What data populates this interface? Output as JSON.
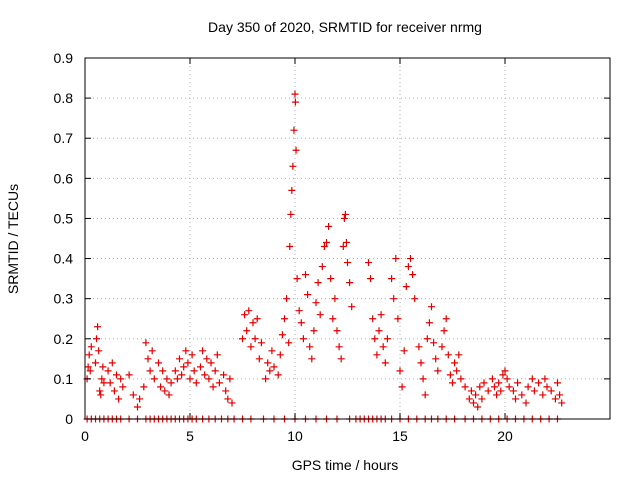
{
  "chart_data": {
    "type": "scatter",
    "title": "Day 350 of 2020, SRMTID for receiver nrmg",
    "xlabel": "GPS time / hours",
    "ylabel": "SRMTID / TECUs",
    "xlim": [
      0,
      25
    ],
    "ylim": [
      0,
      0.9
    ],
    "xticks": [
      0,
      5,
      10,
      15,
      20
    ],
    "xtick_labels": [
      "0",
      "5",
      "10",
      "15",
      "20"
    ],
    "yticks": [
      0,
      0.1,
      0.2,
      0.3,
      0.4,
      0.5,
      0.6,
      0.7,
      0.8,
      0.9
    ],
    "ytick_labels": [
      "0",
      "0.1",
      "0.2",
      "0.3",
      "0.4",
      "0.5",
      "0.6",
      "0.7",
      "0.8",
      "0.9"
    ],
    "grid": true,
    "marker": "+",
    "color": "#e00000",
    "series": [
      {
        "name": "SRMTID",
        "points": [
          [
            0.1,
            0.1
          ],
          [
            0.15,
            0.13
          ],
          [
            0.2,
            0.16
          ],
          [
            0.25,
            0.12
          ],
          [
            0.3,
            0.18
          ],
          [
            0.5,
            0.14
          ],
          [
            0.55,
            0.2
          ],
          [
            0.6,
            0.23
          ],
          [
            0.65,
            0.17
          ],
          [
            0.7,
            0.07
          ],
          [
            0.75,
            0.06
          ],
          [
            0.8,
            0.1
          ],
          [
            0.85,
            0.13
          ],
          [
            0.9,
            0.09
          ],
          [
            1.1,
            0.12
          ],
          [
            1.2,
            0.09
          ],
          [
            1.3,
            0.14
          ],
          [
            1.4,
            0.07
          ],
          [
            1.5,
            0.11
          ],
          [
            1.6,
            0.05
          ],
          [
            1.7,
            0.1
          ],
          [
            1.8,
            0.08
          ],
          [
            2.1,
            0.11
          ],
          [
            2.3,
            0.06
          ],
          [
            2.5,
            0.03
          ],
          [
            2.6,
            0.05
          ],
          [
            2.8,
            0.08
          ],
          [
            2.9,
            0.19
          ],
          [
            3.0,
            0.15
          ],
          [
            3.1,
            0.12
          ],
          [
            3.2,
            0.17
          ],
          [
            3.3,
            0.1
          ],
          [
            3.5,
            0.14
          ],
          [
            3.6,
            0.08
          ],
          [
            3.7,
            0.12
          ],
          [
            3.8,
            0.07
          ],
          [
            3.9,
            0.1
          ],
          [
            4.0,
            0.06
          ],
          [
            4.1,
            0.09
          ],
          [
            4.3,
            0.12
          ],
          [
            4.4,
            0.1
          ],
          [
            4.5,
            0.15
          ],
          [
            4.6,
            0.11
          ],
          [
            4.7,
            0.13
          ],
          [
            4.8,
            0.17
          ],
          [
            4.9,
            0.14
          ],
          [
            5.0,
            0.1
          ],
          [
            5.1,
            0.16
          ],
          [
            5.2,
            0.12
          ],
          [
            5.3,
            0.09
          ],
          [
            5.5,
            0.13
          ],
          [
            5.6,
            0.17
          ],
          [
            5.7,
            0.11
          ],
          [
            5.8,
            0.15
          ],
          [
            5.9,
            0.1
          ],
          [
            6.0,
            0.14
          ],
          [
            6.1,
            0.08
          ],
          [
            6.2,
            0.12
          ],
          [
            6.3,
            0.16
          ],
          [
            6.4,
            0.09
          ],
          [
            6.6,
            0.11
          ],
          [
            6.7,
            0.07
          ],
          [
            6.8,
            0.05
          ],
          [
            6.9,
            0.1
          ],
          [
            7.0,
            0.04
          ],
          [
            7.5,
            0.2
          ],
          [
            7.6,
            0.26
          ],
          [
            7.7,
            0.22
          ],
          [
            7.8,
            0.27
          ],
          [
            7.9,
            0.18
          ],
          [
            8.0,
            0.24
          ],
          [
            8.1,
            0.2
          ],
          [
            8.2,
            0.25
          ],
          [
            8.3,
            0.15
          ],
          [
            8.4,
            0.19
          ],
          [
            8.6,
            0.1
          ],
          [
            8.7,
            0.14
          ],
          [
            8.8,
            0.12
          ],
          [
            8.9,
            0.17
          ],
          [
            9.0,
            0.13
          ],
          [
            9.2,
            0.11
          ],
          [
            9.3,
            0.16
          ],
          [
            9.4,
            0.21
          ],
          [
            9.5,
            0.25
          ],
          [
            9.6,
            0.3
          ],
          [
            9.7,
            0.19
          ],
          [
            9.75,
            0.43
          ],
          [
            9.8,
            0.51
          ],
          [
            9.85,
            0.57
          ],
          [
            9.9,
            0.63
          ],
          [
            9.95,
            0.72
          ],
          [
            10.0,
            0.81
          ],
          [
            10.02,
            0.79
          ],
          [
            10.05,
            0.67
          ],
          [
            10.1,
            0.35
          ],
          [
            10.2,
            0.27
          ],
          [
            10.3,
            0.24
          ],
          [
            10.4,
            0.2
          ],
          [
            10.5,
            0.36
          ],
          [
            10.6,
            0.31
          ],
          [
            10.7,
            0.18
          ],
          [
            10.8,
            0.15
          ],
          [
            10.9,
            0.22
          ],
          [
            11.0,
            0.29
          ],
          [
            11.1,
            0.34
          ],
          [
            11.2,
            0.26
          ],
          [
            11.3,
            0.38
          ],
          [
            11.4,
            0.43
          ],
          [
            11.5,
            0.44
          ],
          [
            11.6,
            0.48
          ],
          [
            11.7,
            0.35
          ],
          [
            11.8,
            0.25
          ],
          [
            11.9,
            0.3
          ],
          [
            12.0,
            0.22
          ],
          [
            12.1,
            0.18
          ],
          [
            12.2,
            0.15
          ],
          [
            12.3,
            0.43
          ],
          [
            12.35,
            0.5
          ],
          [
            12.4,
            0.51
          ],
          [
            12.45,
            0.44
          ],
          [
            12.5,
            0.39
          ],
          [
            12.6,
            0.34
          ],
          [
            12.7,
            0.28
          ],
          [
            13.5,
            0.39
          ],
          [
            13.6,
            0.35
          ],
          [
            13.7,
            0.25
          ],
          [
            13.8,
            0.2
          ],
          [
            13.9,
            0.16
          ],
          [
            14.0,
            0.22
          ],
          [
            14.1,
            0.26
          ],
          [
            14.2,
            0.18
          ],
          [
            14.3,
            0.14
          ],
          [
            14.4,
            0.2
          ],
          [
            14.6,
            0.35
          ],
          [
            14.7,
            0.3
          ],
          [
            14.8,
            0.4
          ],
          [
            14.9,
            0.25
          ],
          [
            15.0,
            0.12
          ],
          [
            15.1,
            0.08
          ],
          [
            15.2,
            0.17
          ],
          [
            15.3,
            0.33
          ],
          [
            15.4,
            0.38
          ],
          [
            15.5,
            0.4
          ],
          [
            15.6,
            0.36
          ],
          [
            15.7,
            0.3
          ],
          [
            15.9,
            0.18
          ],
          [
            16.0,
            0.14
          ],
          [
            16.1,
            0.1
          ],
          [
            16.2,
            0.06
          ],
          [
            16.3,
            0.2
          ],
          [
            16.4,
            0.24
          ],
          [
            16.5,
            0.28
          ],
          [
            16.6,
            0.19
          ],
          [
            16.7,
            0.15
          ],
          [
            16.8,
            0.12
          ],
          [
            17.0,
            0.18
          ],
          [
            17.1,
            0.22
          ],
          [
            17.2,
            0.25
          ],
          [
            17.3,
            0.16
          ],
          [
            17.4,
            0.11
          ],
          [
            17.5,
            0.09
          ],
          [
            17.6,
            0.14
          ],
          [
            17.7,
            0.12
          ],
          [
            17.8,
            0.16
          ],
          [
            17.9,
            0.1
          ],
          [
            18.1,
            0.08
          ],
          [
            18.3,
            0.05
          ],
          [
            18.4,
            0.07
          ],
          [
            18.5,
            0.04
          ],
          [
            18.6,
            0.06
          ],
          [
            18.7,
            0.03
          ],
          [
            18.8,
            0.08
          ],
          [
            18.9,
            0.05
          ],
          [
            19.0,
            0.09
          ],
          [
            19.2,
            0.07
          ],
          [
            19.4,
            0.1
          ],
          [
            19.5,
            0.08
          ],
          [
            19.6,
            0.06
          ],
          [
            19.7,
            0.09
          ],
          [
            19.8,
            0.07
          ],
          [
            19.9,
            0.11
          ],
          [
            20.0,
            0.12
          ],
          [
            20.1,
            0.1
          ],
          [
            20.2,
            0.08
          ],
          [
            20.4,
            0.07
          ],
          [
            20.5,
            0.05
          ],
          [
            20.6,
            0.09
          ],
          [
            20.8,
            0.06
          ],
          [
            21.0,
            0.04
          ],
          [
            21.1,
            0.08
          ],
          [
            21.3,
            0.1
          ],
          [
            21.4,
            0.07
          ],
          [
            21.6,
            0.09
          ],
          [
            21.8,
            0.06
          ],
          [
            21.9,
            0.1
          ],
          [
            22.0,
            0.08
          ],
          [
            22.2,
            0.07
          ],
          [
            22.4,
            0.05
          ],
          [
            22.5,
            0.09
          ],
          [
            22.6,
            0.06
          ],
          [
            22.7,
            0.04
          ]
        ],
        "zero_x": [
          0.1,
          0.3,
          0.5,
          0.7,
          0.9,
          1.1,
          1.3,
          1.5,
          1.7,
          2.1,
          2.5,
          2.9,
          3.1,
          3.3,
          3.5,
          3.7,
          3.9,
          4.1,
          4.3,
          4.5,
          4.7,
          4.9,
          5.1,
          5.3,
          5.6,
          5.9,
          6.2,
          6.5,
          6.8,
          7.1,
          7.5,
          7.9,
          8.5,
          9.0,
          9.5,
          10.0,
          10.5,
          11.0,
          11.5,
          12.0,
          12.6,
          12.9,
          13.1,
          13.3,
          13.5,
          13.7,
          13.9,
          14.1,
          14.3,
          14.6,
          15.0,
          15.4,
          15.8,
          16.2,
          16.5,
          16.8,
          17.2,
          17.6,
          18.1,
          18.5,
          18.9,
          19.3,
          19.7,
          20.1,
          20.5,
          20.9,
          21.3,
          21.7,
          22.1,
          22.5
        ]
      }
    ]
  }
}
